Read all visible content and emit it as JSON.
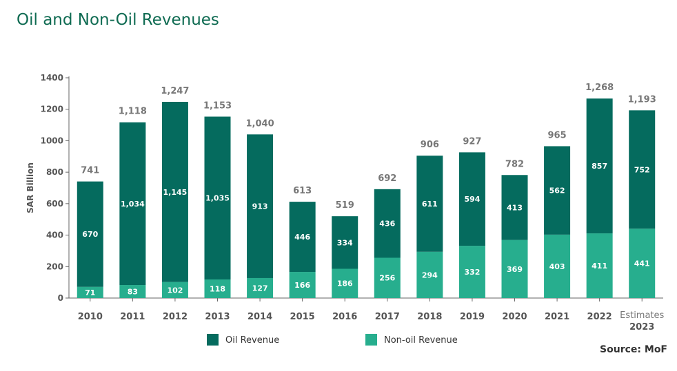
{
  "chart_data": {
    "type": "bar",
    "stacked": true,
    "title": "Oil and Non-Oil Revenues",
    "ylabel": "SAR Billion",
    "xlabel": "",
    "ylim": [
      0,
      1400
    ],
    "yticks": [
      0,
      200,
      400,
      600,
      800,
      1000,
      1200,
      1400
    ],
    "categories": [
      {
        "label": "2010"
      },
      {
        "label": "2011"
      },
      {
        "label": "2012"
      },
      {
        "label": "2013"
      },
      {
        "label": "2014"
      },
      {
        "label": "2015"
      },
      {
        "label": "2016"
      },
      {
        "label": "2017"
      },
      {
        "label": "2018"
      },
      {
        "label": "2019"
      },
      {
        "label": "2020"
      },
      {
        "label": "2021"
      },
      {
        "label": "2022"
      },
      {
        "label": "Estimates",
        "sub": "2023"
      }
    ],
    "series": [
      {
        "name": "Non-oil Revenue",
        "color": "#27ae8e",
        "values": [
          71,
          83,
          102,
          118,
          127,
          166,
          186,
          256,
          294,
          332,
          369,
          403,
          411,
          441
        ]
      },
      {
        "name": "Oil Revenue",
        "color": "#056b5e",
        "values": [
          670,
          1034,
          1145,
          1035,
          913,
          446,
          334,
          436,
          611,
          594,
          413,
          562,
          857,
          752
        ]
      }
    ],
    "totals": [
      "741",
      "1,118",
      "1,247",
      "1,153",
      "1,040",
      "613",
      "519",
      "692",
      "906",
      "927",
      "782",
      "965",
      "1,268",
      "1,193"
    ],
    "oil_labels": [
      "670",
      "1,034",
      "1,145",
      "1,035",
      "913",
      "446",
      "334",
      "436",
      "611",
      "594",
      "413",
      "562",
      "857",
      "752"
    ],
    "nonoil_labels": [
      "71",
      "83",
      "102",
      "118",
      "127",
      "166",
      "186",
      "256",
      "294",
      "332",
      "369",
      "403",
      "411",
      "441"
    ],
    "legend": [
      {
        "name": "Oil Revenue",
        "color": "#056b5e"
      },
      {
        "name": "Non-oil Revenue",
        "color": "#27ae8e"
      }
    ],
    "legend_position": "bottom"
  },
  "source": "Source: MoF"
}
